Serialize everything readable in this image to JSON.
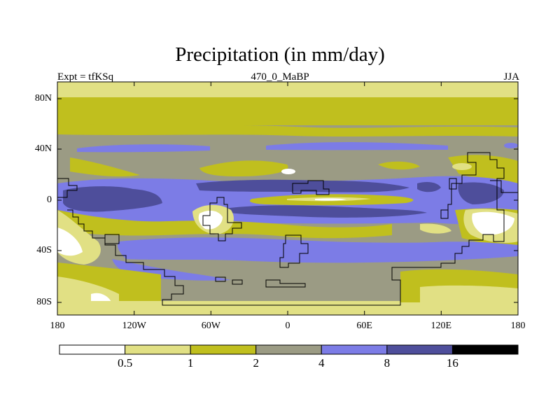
{
  "title": "Precipitation (in mm/day)",
  "subtitle_left": "Expt = tfKSq",
  "subtitle_center": "470_0_MaBP",
  "subtitle_right": "JJA",
  "lat_labels": [
    "80N",
    "40N",
    "0",
    "40S",
    "80S"
  ],
  "lon_labels": [
    "180",
    "120W",
    "60W",
    "0",
    "60E",
    "120E",
    "180"
  ],
  "colorbar": {
    "levels": [
      "0.5",
      "1",
      "2",
      "4",
      "8",
      "16"
    ],
    "colors": [
      "#ffffff",
      "#e1e084",
      "#c0bf1e",
      "#9b9b84",
      "#7c7ce6",
      "#4e4e9b",
      "#000000"
    ]
  },
  "colors": {
    "frame": "#000000",
    "coast": "#000000"
  }
}
